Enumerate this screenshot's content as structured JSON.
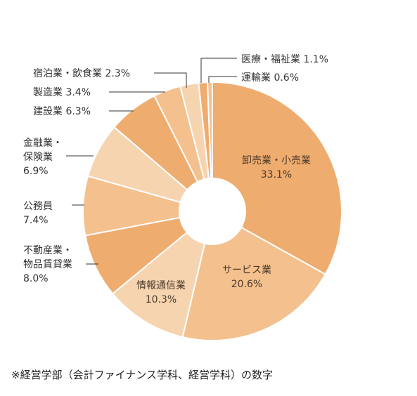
{
  "chart_data": {
    "type": "pie",
    "variant": "donut",
    "slices": [
      {
        "label": "卸売業・小売業",
        "value": 33.1,
        "color": "#efac6f"
      },
      {
        "label": "サービス業",
        "value": 20.6,
        "color": "#f4c08d"
      },
      {
        "label": "情報通信業",
        "value": 10.3,
        "color": "#f7d4b0"
      },
      {
        "label": "不動産業・物品賃貸業",
        "value": 8.0,
        "color": "#efac6f"
      },
      {
        "label": "公務員",
        "value": 7.4,
        "color": "#f4c08d"
      },
      {
        "label": "金融業・保険業",
        "value": 6.9,
        "color": "#f7d4b0"
      },
      {
        "label": "建設業",
        "value": 6.3,
        "color": "#efac6f"
      },
      {
        "label": "製造業",
        "value": 3.4,
        "color": "#f4c08d"
      },
      {
        "label": "宿泊業・飲食業",
        "value": 2.3,
        "color": "#f7d4b0"
      },
      {
        "label": "医療・福祉業",
        "value": 1.1,
        "color": "#efac6f"
      },
      {
        "label": "運輸業",
        "value": 0.6,
        "color": "#f4c08d"
      }
    ],
    "value_labels": [
      "33.1%",
      "20.6%",
      "10.3%",
      "8.0%",
      "7.4%",
      "6.9%",
      "6.3%",
      "3.4%",
      "2.3%",
      "1.1%",
      "0.6%"
    ],
    "label_lines": [
      [
        "卸売業・小売業",
        "33.1%"
      ],
      [
        "サービス業",
        "20.6%"
      ],
      [
        "情報通信業",
        "10.3%"
      ],
      [
        "不動産業・",
        "物品賃貸業",
        "8.0%"
      ],
      [
        "公務員",
        "7.4%"
      ],
      [
        "金融業・",
        "保険業",
        "6.9%"
      ],
      [
        "建設業 6.3%"
      ],
      [
        "製造業 3.4%"
      ],
      [
        "宿泊業・飲食業 2.3%"
      ],
      [
        "医療・福祉業 1.1%"
      ],
      [
        "運輸業 0.6%"
      ]
    ]
  },
  "footnote": "※経営学部（会計ファイナンス学科、経営学科）の数字"
}
